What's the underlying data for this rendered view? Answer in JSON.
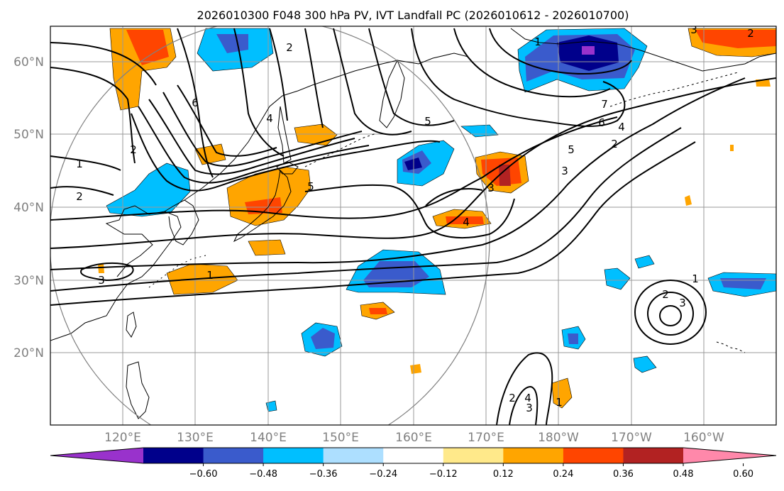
{
  "title": "2026010300 F048 300 hPa PV, IVT Landfall PC (2026010612 - 2026010700)",
  "lat_labels": [
    "60°N",
    "50°N",
    "40°N",
    "30°N",
    "20°N"
  ],
  "lon_labels": [
    "120°E",
    "130°E",
    "140°E",
    "150°E",
    "160°E",
    "170°E",
    "180°W",
    "170°W",
    "160°W"
  ],
  "colorbar": {
    "ticks": [
      "−0.60",
      "−0.48",
      "−0.36",
      "−0.24",
      "−0.12",
      "0.12",
      "0.24",
      "0.36",
      "0.48",
      "0.60"
    ],
    "colors": [
      "#9932cc",
      "#00008b",
      "#3a5bcc",
      "#00bfff",
      "#addfff",
      "#ffffff",
      "#ffe98a",
      "#ffa500",
      "#ff4500",
      "#b22222",
      "#ff88aa"
    ]
  },
  "contour_labels": [
    "1",
    "2",
    "3",
    "4",
    "5",
    "6",
    "7"
  ]
}
